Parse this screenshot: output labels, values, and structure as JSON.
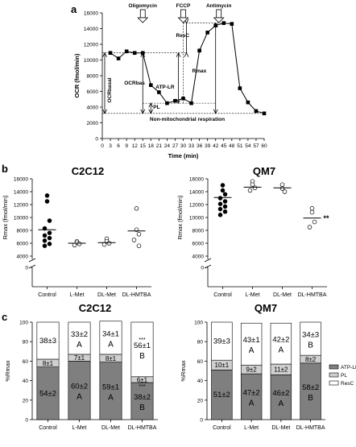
{
  "panel_labels": {
    "a": "a",
    "b": "b",
    "c": "c"
  },
  "chart_data": [
    {
      "id": "panel-a",
      "type": "line",
      "xlabel": "Time (min)",
      "ylabel": "OCR (fmol/min)",
      "xlim": [
        0,
        60
      ],
      "ylim": [
        0,
        16000
      ],
      "x_ticks": [
        0,
        3,
        6,
        9,
        12,
        15,
        18,
        21,
        24,
        27,
        30,
        33,
        36,
        39,
        42,
        45,
        48,
        51,
        54,
        57,
        60
      ],
      "y_ticks": [
        0,
        2000,
        4000,
        6000,
        8000,
        10000,
        12000,
        14000,
        16000
      ],
      "series": [
        {
          "x": [
            3,
            6,
            9,
            12,
            15,
            18,
            21,
            24,
            27,
            30,
            33,
            36,
            39,
            42,
            45,
            48,
            51,
            54,
            57,
            60
          ],
          "y": [
            10900,
            10200,
            11100,
            10900,
            10900,
            6800,
            5900,
            4500,
            4800,
            5100,
            4500,
            11200,
            13500,
            14400,
            14700,
            14600,
            6400,
            4600,
            3500,
            3200
          ]
        }
      ],
      "annotations": {
        "oligomycin": {
          "label": "Oligomycin",
          "x": 15
        },
        "fccp": {
          "label": "FCCP",
          "x": 30
        },
        "antimycin": {
          "label": "Antimycin",
          "x": 42
        },
        "ocr_basal": "OCRbasal",
        "ocr_bas": "OCRbas",
        "atp_lr": "ATP-LR",
        "pl": "PL",
        "resc": "ResC",
        "rmax": "Rmax",
        "non_mito": "Non-mitochondrial respiration"
      }
    },
    {
      "id": "panel-b-c2c12",
      "type": "scatter",
      "title": "C2C12",
      "ylabel": "Rmax (fmol/min)",
      "categories": [
        "Control",
        "L-Met",
        "DL-Met",
        "DL-HMTBA"
      ],
      "y_ticks": [
        0,
        2000,
        4000,
        6000,
        8000,
        10000,
        12000,
        14000,
        16000
      ],
      "ylim": [
        0,
        16000
      ],
      "y_break_tick": "0",
      "points": [
        {
          "cat": 0,
          "y": 13400,
          "filled": true
        },
        {
          "cat": 0,
          "y": 12500,
          "filled": true
        },
        {
          "cat": 0,
          "y": 9500,
          "filled": true
        },
        {
          "cat": 0,
          "y": 8300,
          "filled": true
        },
        {
          "cat": 0,
          "y": 7600,
          "filled": true
        },
        {
          "cat": 0,
          "y": 7200,
          "filled": true
        },
        {
          "cat": 0,
          "y": 6800,
          "filled": true
        },
        {
          "cat": 0,
          "y": 6400,
          "filled": true
        },
        {
          "cat": 0,
          "y": 5900,
          "filled": true
        },
        {
          "cat": 0,
          "y": 5600,
          "filled": true
        },
        {
          "cat": 1,
          "y": 6300,
          "filled": false
        },
        {
          "cat": 1,
          "y": 6100,
          "filled": false
        },
        {
          "cat": 1,
          "y": 5900,
          "filled": false
        },
        {
          "cat": 1,
          "y": 5700,
          "filled": false
        },
        {
          "cat": 2,
          "y": 6700,
          "filled": false
        },
        {
          "cat": 2,
          "y": 6300,
          "filled": false
        },
        {
          "cat": 2,
          "y": 6000,
          "filled": false
        },
        {
          "cat": 2,
          "y": 5800,
          "filled": false
        },
        {
          "cat": 3,
          "y": 11400,
          "filled": false
        },
        {
          "cat": 3,
          "y": 8100,
          "filled": false
        },
        {
          "cat": 3,
          "y": 7400,
          "filled": false
        },
        {
          "cat": 3,
          "y": 6500,
          "filled": false
        },
        {
          "cat": 3,
          "y": 5600,
          "filled": false
        }
      ],
      "means": [
        8100,
        6000,
        6100,
        7900
      ],
      "significance": [
        "",
        "",
        "",
        ""
      ]
    },
    {
      "id": "panel-b-qm7",
      "type": "scatter",
      "title": "QM7",
      "ylabel": "Rmax (fmol/min)",
      "categories": [
        "Control",
        "L-Met",
        "DL-Met",
        "DL-HMTBA"
      ],
      "y_ticks": [
        0,
        2000,
        4000,
        6000,
        8000,
        10000,
        12000,
        14000,
        16000
      ],
      "ylim": [
        0,
        16000
      ],
      "y_break_tick": "0",
      "points": [
        {
          "cat": 0,
          "y": 15000,
          "filled": true
        },
        {
          "cat": 0,
          "y": 14200,
          "filled": true
        },
        {
          "cat": 0,
          "y": 13600,
          "filled": true
        },
        {
          "cat": 0,
          "y": 13000,
          "filled": true
        },
        {
          "cat": 0,
          "y": 12500,
          "filled": true
        },
        {
          "cat": 0,
          "y": 12100,
          "filled": true
        },
        {
          "cat": 0,
          "y": 11700,
          "filled": true
        },
        {
          "cat": 0,
          "y": 11300,
          "filled": true
        },
        {
          "cat": 0,
          "y": 10900,
          "filled": true
        },
        {
          "cat": 0,
          "y": 10400,
          "filled": true
        },
        {
          "cat": 1,
          "y": 15600,
          "filled": false
        },
        {
          "cat": 1,
          "y": 15100,
          "filled": false
        },
        {
          "cat": 1,
          "y": 14600,
          "filled": false
        },
        {
          "cat": 1,
          "y": 14200,
          "filled": false
        },
        {
          "cat": 2,
          "y": 15100,
          "filled": false
        },
        {
          "cat": 2,
          "y": 14500,
          "filled": false
        },
        {
          "cat": 2,
          "y": 14000,
          "filled": false
        },
        {
          "cat": 3,
          "y": 11400,
          "filled": false
        },
        {
          "cat": 3,
          "y": 10800,
          "filled": false
        },
        {
          "cat": 3,
          "y": 9300,
          "filled": false
        },
        {
          "cat": 3,
          "y": 8500,
          "filled": false
        }
      ],
      "means": [
        13100,
        14700,
        14600,
        9900
      ],
      "significance": [
        "",
        "",
        "",
        "**"
      ]
    },
    {
      "id": "panel-c-c2c12",
      "type": "bar",
      "stacked": true,
      "title": "C2C12",
      "ylabel": "%Rmax",
      "categories": [
        "Control",
        "L-Met",
        "DL-Met",
        "DL-HMTBA"
      ],
      "ylim": [
        0,
        100
      ],
      "y_ticks": [
        0,
        20,
        40,
        60,
        80,
        100
      ],
      "series": [
        {
          "name": "ATP-LR",
          "values": [
            54,
            60,
            59,
            38
          ],
          "labels": [
            "54±2",
            "60±2",
            "59±1",
            "38±2"
          ],
          "letters": [
            "",
            "A",
            "A",
            "B"
          ],
          "stars": [
            "",
            "",
            "",
            "***"
          ],
          "color": "#7f7f7f"
        },
        {
          "name": "PL",
          "values": [
            8,
            7,
            8,
            6
          ],
          "labels": [
            "8±1",
            "7±1",
            "8±1",
            "6±1"
          ],
          "letters": [
            "",
            "",
            "",
            ""
          ],
          "stars": [
            "",
            "",
            "",
            ""
          ],
          "color": "#cfcfcf"
        },
        {
          "name": "ResC",
          "values": [
            38,
            33,
            34,
            56
          ],
          "labels": [
            "38±3",
            "33±2",
            "34±1",
            "56±1"
          ],
          "letters": [
            "",
            "A",
            "A",
            "B"
          ],
          "stars": [
            "",
            "",
            "",
            "***"
          ],
          "color": "#ffffff"
        }
      ]
    },
    {
      "id": "panel-c-qm7",
      "type": "bar",
      "stacked": true,
      "title": "QM7",
      "ylabel": "%Rmax",
      "categories": [
        "Control",
        "L-Met",
        "DL-Met",
        "DL-HMTBA"
      ],
      "ylim": [
        0,
        100
      ],
      "y_ticks": [
        0,
        20,
        40,
        60,
        80,
        100
      ],
      "series": [
        {
          "name": "ATP-LR",
          "values": [
            51,
            47,
            46,
            58
          ],
          "labels": [
            "51±2",
            "47±2",
            "46±2",
            "58±2"
          ],
          "letters": [
            "",
            "A",
            "A",
            "B"
          ],
          "color": "#7f7f7f"
        },
        {
          "name": "PL",
          "values": [
            10,
            9,
            11,
            8
          ],
          "labels": [
            "10±1",
            "9±2",
            "11±2",
            "8±2"
          ],
          "letters": [
            "",
            "",
            "",
            ""
          ],
          "color": "#cfcfcf"
        },
        {
          "name": "ResC",
          "values": [
            39,
            43,
            42,
            34
          ],
          "labels": [
            "39±3",
            "43±1",
            "42±2",
            "34±3"
          ],
          "letters": [
            "",
            "A",
            "A",
            "B"
          ],
          "color": "#ffffff"
        }
      ],
      "legend": {
        "position": "right",
        "items": [
          "ATP-LR",
          "PL",
          "ResC"
        ]
      }
    }
  ]
}
